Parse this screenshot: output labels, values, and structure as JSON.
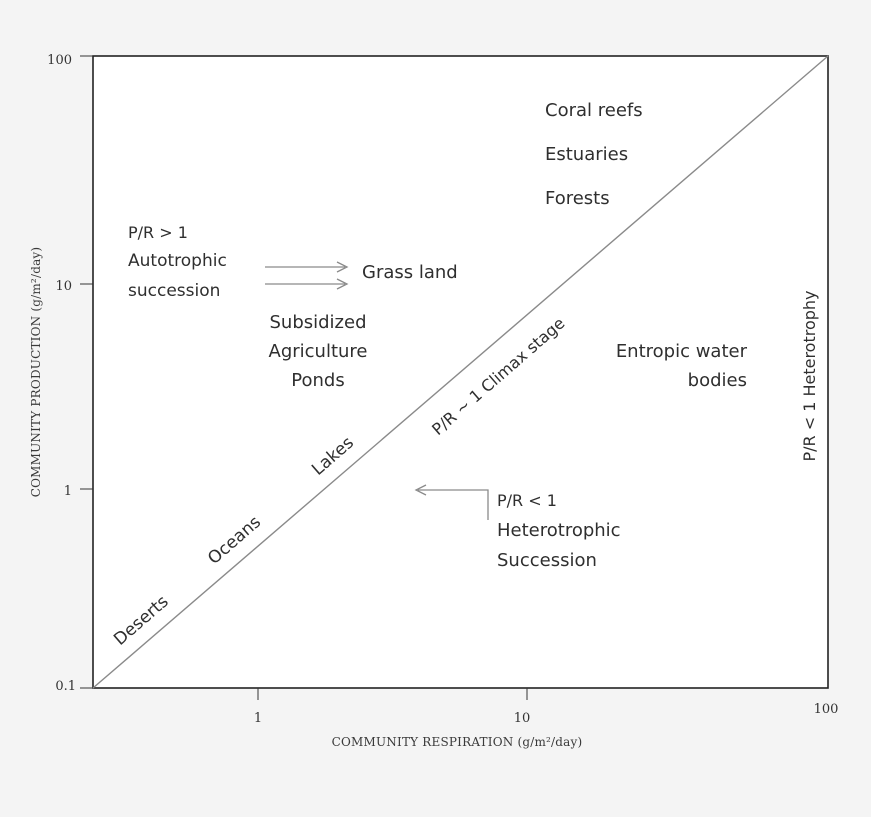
{
  "chart_data": {
    "type": "scatter",
    "xlabel": "COMMUNITY RESPIRATION (g/m²/day)",
    "ylabel": "COMMUNITY PRODUCTION (g/m²/day)",
    "xscale": "log",
    "yscale": "log",
    "xlim": [
      0.3,
      100
    ],
    "ylim": [
      0.1,
      100
    ],
    "x_ticks": [
      1,
      10,
      100
    ],
    "y_ticks": [
      0.1,
      1,
      10,
      100
    ],
    "x_tick_labels": [
      "1",
      "10",
      "100"
    ],
    "y_tick_labels": [
      "0.1",
      "1",
      "10",
      "100"
    ],
    "diagonal": {
      "from": [
        0.3,
        0.1
      ],
      "to": [
        100,
        100
      ]
    },
    "grid": false
  },
  "labels": {
    "coral_reefs": "Coral reefs",
    "estuaries": "Estuaries",
    "forests": "Forests",
    "pr_gt_1": "P/R > 1",
    "autotrophic": "Autotrophic",
    "succession": "succession",
    "grass_land": "Grass land",
    "subsidized": "Subsidized",
    "agriculture": "Agriculture",
    "ponds": "Ponds",
    "climax": "P/R ~ 1 Climax stage",
    "entropic_water": "Entropic water",
    "bodies": "bodies",
    "heterotrophy": "P/R < 1 Heterotrophy",
    "lakes": "Lakes",
    "oceans": "Oceans",
    "deserts": "Deserts",
    "pr_lt_1": "P/R < 1",
    "heterotrophic": "Heterotrophic",
    "succession_cap": "Succession"
  }
}
